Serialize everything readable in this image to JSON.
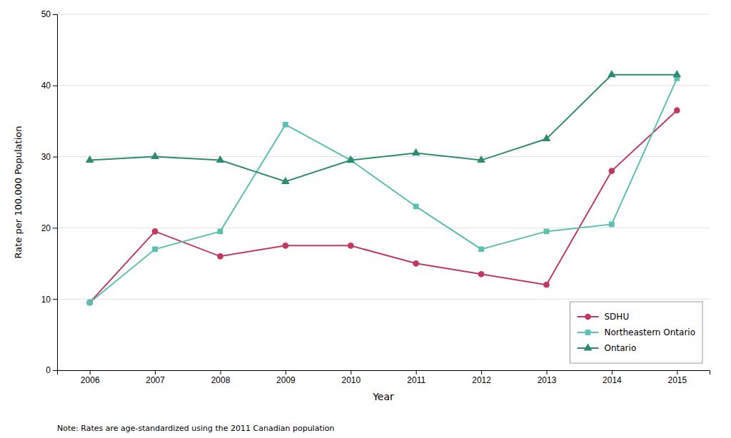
{
  "chart_data": {
    "type": "line",
    "xlabel": "Year",
    "ylabel": "Rate per 100,000 Population",
    "annotations": [
      "Note: Rates are age-standardized using the 2011 Canadian population"
    ],
    "x": [
      2006,
      2007,
      2008,
      2009,
      2010,
      2011,
      2012,
      2013,
      2014,
      2015
    ],
    "series": [
      {
        "name": "SDHU",
        "color": "#c0395e",
        "marker": "circle",
        "values": [
          9.5,
          19.5,
          16.0,
          17.5,
          17.5,
          15.0,
          13.5,
          12.0,
          28.0,
          36.5
        ]
      },
      {
        "name": "Northeastern Ontario",
        "color": "#5cbfb0",
        "marker": "square",
        "values": [
          9.5,
          17.0,
          19.5,
          34.5,
          29.5,
          23.0,
          17.0,
          19.5,
          20.5,
          41.0
        ]
      },
      {
        "name": "Ontario",
        "color": "#2e8b70",
        "marker": "triangle",
        "values": [
          29.5,
          30.0,
          29.5,
          26.5,
          29.5,
          30.5,
          29.5,
          32.5,
          41.5,
          41.5
        ]
      }
    ],
    "xlim": [
      2005.5,
      2015.5
    ],
    "xticks": [
      2006,
      2007,
      2008,
      2009,
      2010,
      2011,
      2012,
      2013,
      2014,
      2015
    ],
    "ylim": [
      0,
      50
    ],
    "yticks": [
      0,
      10,
      20,
      30,
      40,
      50
    ],
    "grid": "y",
    "legend": "lower right"
  }
}
